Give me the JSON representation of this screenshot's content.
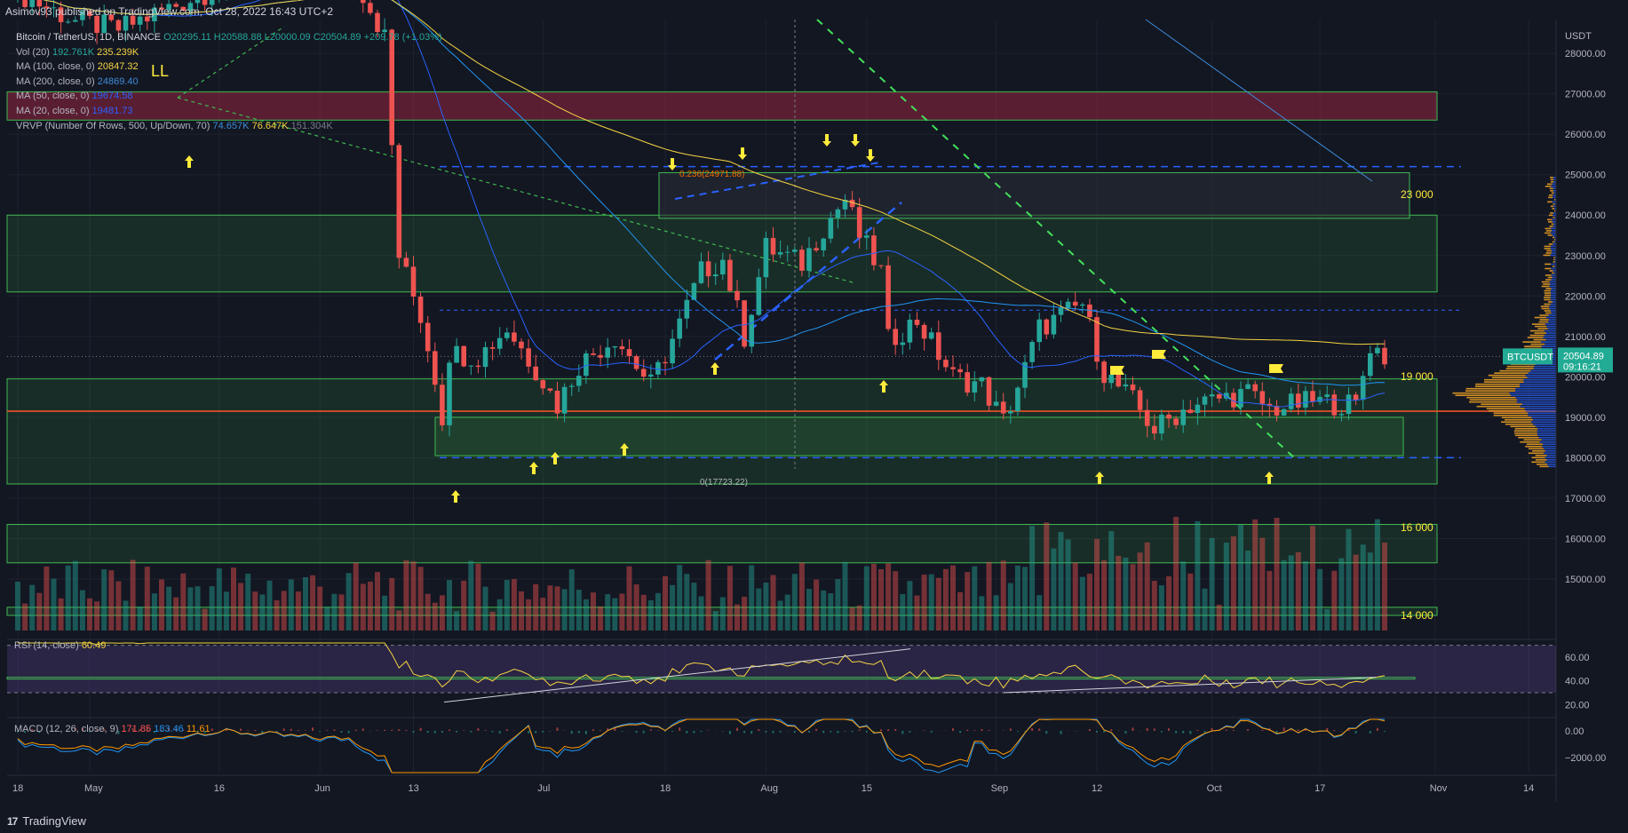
{
  "header": {
    "publisher": "Asimov93 published on TradingView.com, Oct 28, 2022 16:43 UTC+2"
  },
  "legend": {
    "symbol": "Bitcoin / TetherUS, 1D, BINANCE",
    "ohlc": "O20295.11 H20588.88 L20000.09 C20504.89 +209.78 (+1.03%)",
    "vol_name": "Vol (20)",
    "vol_v1": "192.761K",
    "vol_v2": "235.239K",
    "ma100_name": "MA (100, close, 0)",
    "ma100_val": "20847.32",
    "ma200_name": "MA (200, close, 0)",
    "ma200_val": "24869.40",
    "ma50_name": "MA (50, close, 0)",
    "ma50_val": "19674.58",
    "ma20_name": "MA (20, close, 0)",
    "ma20_val": "19481.73",
    "vrvp_name": "VRVP (Number Of Rows, 500, Up/Down, 70)",
    "vrvp_v1": "74.657K",
    "vrvp_v2": "76.647K",
    "vrvp_v3": "151.304K"
  },
  "rsi": {
    "label": "RSI (14, close)",
    "value": "60.49"
  },
  "macd": {
    "label": "MACD (12, 26, close, 9)",
    "v1": "171.85",
    "v2": "183.46",
    "v3": "11.61"
  },
  "footer": {
    "brand": "TradingView",
    "logo": "17"
  },
  "colors": {
    "up": "#26a69a",
    "down": "#ef5350",
    "ma20": "#2962ff",
    "ma100": "#f5d442",
    "ma200": "#3d8bd9",
    "zone": "#3fb950",
    "resist": "#b2294a"
  },
  "chart_data": {
    "type": "candlestick",
    "symbol": "BTCUSDT",
    "price_axis": {
      "unit": "USDT",
      "range": [
        14000,
        28500
      ],
      "ticks": [
        15000,
        16000,
        17000,
        18000,
        19000,
        20000,
        21000,
        22000,
        23000,
        24000,
        25000,
        26000,
        27000,
        28000
      ],
      "tick_labels": [
        "15000.00",
        "16000.00",
        "17000.00",
        "18000.00",
        "19000.00",
        "20000.00",
        "21000.00",
        "22000.00",
        "23000.00",
        "24000.00",
        "25000.00",
        "26000.00",
        "27000.00",
        "28000.00"
      ]
    },
    "date_axis": {
      "labels": [
        "18",
        "May",
        "16",
        "Jun",
        "13",
        "Jul",
        "18",
        "Aug",
        "15",
        "Sep",
        "12",
        "Oct",
        "17",
        "Nov",
        "14"
      ],
      "label_days": [
        0,
        10,
        28,
        42,
        55,
        73,
        90,
        104,
        118,
        136,
        150,
        166,
        181,
        197,
        210
      ]
    },
    "last_price": {
      "symbol_label": "BTCUSDT",
      "price": "20504.89",
      "countdown": "09:16:21",
      "value": 20504.89
    },
    "zone_labels": [
      {
        "text": "23 000",
        "price": 23000
      },
      {
        "text": "19 000",
        "price": 19000
      },
      {
        "text": "16 000",
        "price": 16000
      },
      {
        "text": "14 000",
        "price": 14000
      }
    ],
    "fib_labels": [
      {
        "text": "0.236(24971.88)",
        "price": 24971.88
      },
      {
        "text": "0(17723.22)",
        "price": 17723.22
      }
    ],
    "annotations": [
      {
        "text": "LL"
      }
    ],
    "candles_anchor": [
      {
        "day": 0,
        "price": 29500
      },
      {
        "day": 8,
        "price": 28800
      },
      {
        "day": 14,
        "price": 28600
      },
      {
        "day": 30,
        "price": 29800
      },
      {
        "day": 46,
        "price": 30200
      },
      {
        "day": 51,
        "price": 28400
      },
      {
        "day": 53,
        "price": 23000
      },
      {
        "day": 56,
        "price": 21500
      },
      {
        "day": 58,
        "price": 20000
      },
      {
        "day": 59,
        "price": 19000
      },
      {
        "day": 60,
        "price": 20600
      },
      {
        "day": 64,
        "price": 20500
      },
      {
        "day": 68,
        "price": 21200
      },
      {
        "day": 72,
        "price": 20200
      },
      {
        "day": 75,
        "price": 19300
      },
      {
        "day": 78,
        "price": 20300
      },
      {
        "day": 83,
        "price": 21000
      },
      {
        "day": 88,
        "price": 19800
      },
      {
        "day": 92,
        "price": 21300
      },
      {
        "day": 95,
        "price": 22600
      },
      {
        "day": 98,
        "price": 22900
      },
      {
        "day": 101,
        "price": 21000
      },
      {
        "day": 104,
        "price": 23200
      },
      {
        "day": 109,
        "price": 22800
      },
      {
        "day": 112,
        "price": 23700
      },
      {
        "day": 115,
        "price": 24400
      },
      {
        "day": 117,
        "price": 23500
      },
      {
        "day": 120,
        "price": 22600
      },
      {
        "day": 121,
        "price": 20900
      },
      {
        "day": 125,
        "price": 21400
      },
      {
        "day": 130,
        "price": 20000
      },
      {
        "day": 134,
        "price": 19800
      },
      {
        "day": 137,
        "price": 18900
      },
      {
        "day": 140,
        "price": 20200
      },
      {
        "day": 142,
        "price": 21200
      },
      {
        "day": 148,
        "price": 21800
      },
      {
        "day": 151,
        "price": 20100
      },
      {
        "day": 155,
        "price": 19400
      },
      {
        "day": 158,
        "price": 18700
      },
      {
        "day": 163,
        "price": 19300
      },
      {
        "day": 168,
        "price": 19500
      },
      {
        "day": 171,
        "price": 19600
      },
      {
        "day": 174,
        "price": 19200
      },
      {
        "day": 180,
        "price": 19400
      },
      {
        "day": 186,
        "price": 19300
      },
      {
        "day": 188,
        "price": 20800
      },
      {
        "day": 190,
        "price": 20500
      }
    ],
    "rsi_axis": {
      "ticks": [
        20,
        40,
        60
      ],
      "tick_labels": [
        "20.00",
        "40.00",
        "60.00"
      ],
      "band": [
        30,
        70
      ],
      "last": 60.49
    },
    "macd_axis": {
      "ticks": [
        0,
        -2000
      ],
      "tick_labels": [
        "0.00",
        "−2000.00"
      ],
      "macd": 171.85,
      "signal": 183.46,
      "histogram": 11.61
    }
  }
}
